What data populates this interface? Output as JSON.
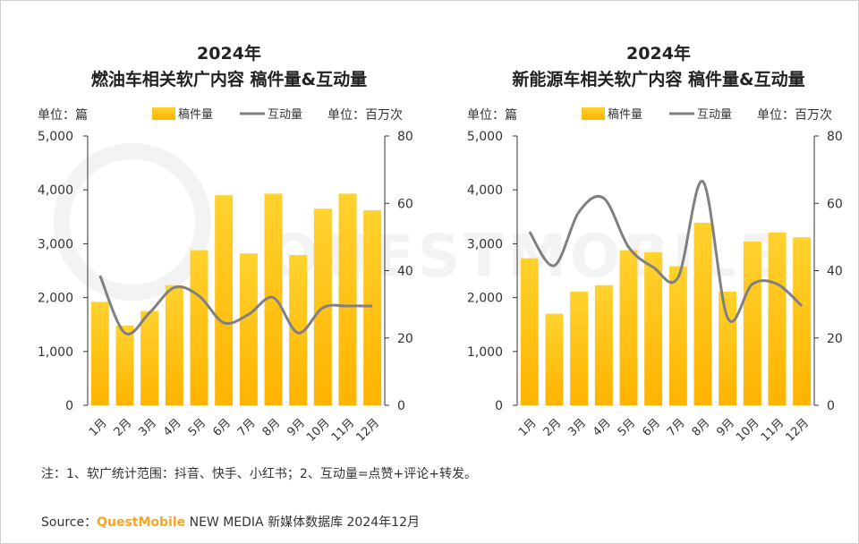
{
  "chart_data": [
    {
      "type": "bar",
      "title": "2024年",
      "subtitle": "燃油车相关软广内容 稿件量&互动量",
      "ylabel_left": "单位：篇",
      "ylabel_right": "单位：百万次",
      "categories": [
        "1月",
        "2月",
        "3月",
        "4月",
        "5月",
        "6月",
        "7月",
        "8月",
        "9月",
        "10月",
        "11月",
        "12月"
      ],
      "ylim_left": [
        0,
        5000
      ],
      "ylim_right": [
        0,
        80
      ],
      "yticks_left": [
        "0",
        "1,000",
        "2,000",
        "3,000",
        "4,000",
        "5,000"
      ],
      "yticks_right": [
        "0",
        "20",
        "40",
        "60",
        "80"
      ],
      "legend_position": "top",
      "series": [
        {
          "name": "稿件量",
          "type": "bar",
          "axis": "left",
          "color": "#FFB800",
          "values": [
            1920,
            1480,
            1750,
            2230,
            2880,
            3900,
            2820,
            3930,
            2790,
            3650,
            3930,
            3620
          ]
        },
        {
          "name": "互动量",
          "type": "line",
          "axis": "right",
          "color": "#808080",
          "values": [
            38.5,
            21.5,
            27.5,
            35,
            32.5,
            24.5,
            27,
            32,
            21.5,
            29,
            29.5,
            29.5
          ]
        }
      ]
    },
    {
      "type": "bar",
      "title": "2024年",
      "subtitle": "新能源车相关软广内容 稿件量&互动量",
      "ylabel_left": "单位：篇",
      "ylabel_right": "单位：百万次",
      "categories": [
        "1月",
        "2月",
        "3月",
        "4月",
        "5月",
        "6月",
        "7月",
        "8月",
        "9月",
        "10月",
        "11月",
        "12月"
      ],
      "ylim_left": [
        0,
        5000
      ],
      "ylim_right": [
        0,
        80
      ],
      "yticks_left": [
        "0",
        "1,000",
        "2,000",
        "3,000",
        "4,000",
        "5,000"
      ],
      "yticks_right": [
        "0",
        "20",
        "40",
        "60",
        "80"
      ],
      "legend_position": "top",
      "series": [
        {
          "name": "稿件量",
          "type": "bar",
          "axis": "left",
          "color": "#FFB800",
          "values": [
            2730,
            1700,
            2110,
            2230,
            2880,
            2840,
            2580,
            3390,
            2110,
            3040,
            3210,
            3120
          ]
        },
        {
          "name": "互动量",
          "type": "line",
          "axis": "right",
          "color": "#808080",
          "values": [
            51.5,
            41.5,
            57.5,
            61.5,
            47,
            41,
            38,
            66.5,
            26,
            36,
            36,
            29.5
          ]
        }
      ]
    }
  ],
  "footnote": "注：1、软广统计范围：抖音、快手、小红书；2、互动量=点赞+评论+转发。",
  "source": {
    "prefix": "Source：",
    "brand": "QuestMobile",
    "suffix": " NEW MEDIA 新媒体数据库 2024年12月"
  },
  "watermark": "QUESTMOBILE"
}
